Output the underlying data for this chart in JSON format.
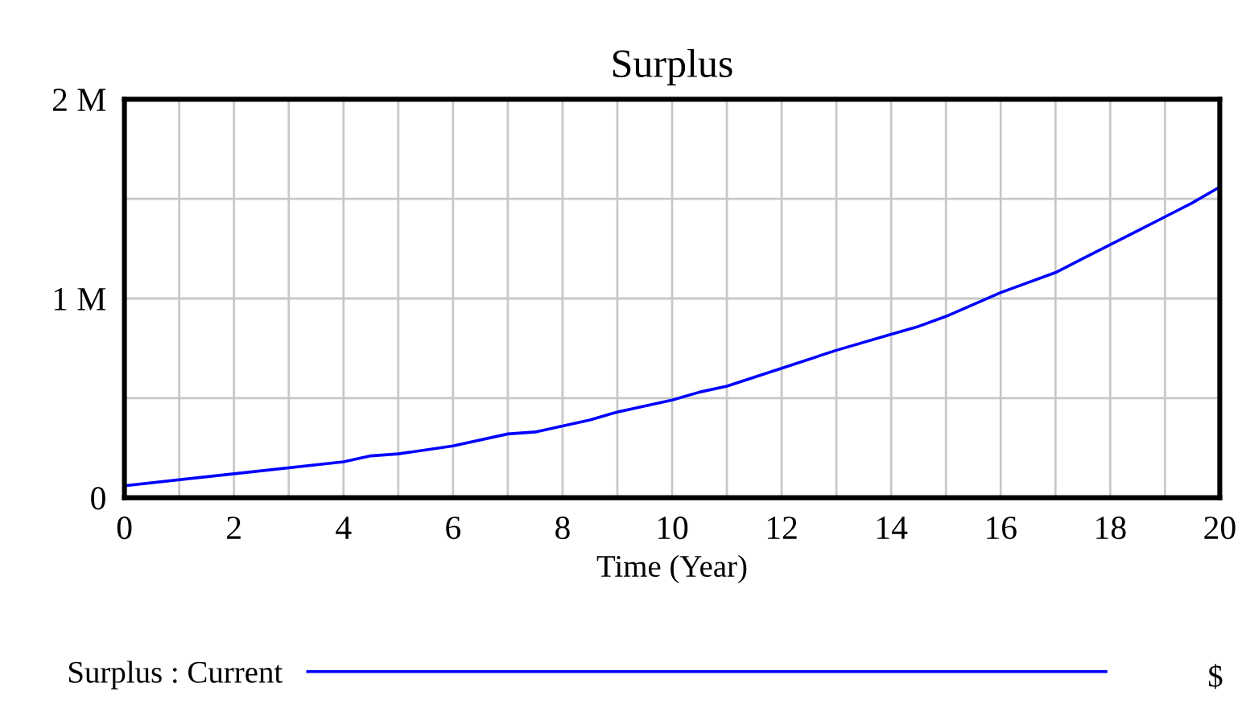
{
  "chart_data": {
    "type": "line",
    "title": "Surplus",
    "xlabel": "Time (Year)",
    "x": [
      0,
      2,
      4,
      4.5,
      5,
      5.5,
      6,
      7,
      7.5,
      8,
      8.5,
      9,
      10,
      10.5,
      11,
      12,
      13,
      14,
      14.5,
      15,
      16,
      17,
      17.5,
      18,
      18.5,
      19,
      19.5,
      20
    ],
    "series": [
      {
        "name": "Surplus : Current",
        "color": "#0000ff",
        "values": [
          60000,
          120000,
          180000,
          210000,
          220000,
          240000,
          260000,
          320000,
          330000,
          360000,
          390000,
          430000,
          490000,
          530000,
          560000,
          650000,
          740000,
          820000,
          860000,
          910000,
          1030000,
          1130000,
          1200000,
          1270000,
          1340000,
          1410000,
          1480000,
          1560000
        ]
      }
    ],
    "xlim": [
      0,
      20
    ],
    "xticks": [
      0,
      {
        "value": 1,
        "label": null
      },
      2,
      {
        "value": 3,
        "label": null
      },
      4,
      {
        "value": 5,
        "label": null
      },
      6,
      {
        "value": 7,
        "label": null
      },
      8,
      {
        "value": 9,
        "label": null
      },
      10,
      {
        "value": 11,
        "label": null
      },
      12,
      {
        "value": 13,
        "label": null
      },
      14,
      {
        "value": 15,
        "label": null
      },
      16,
      {
        "value": 17,
        "label": null
      },
      18,
      {
        "value": 19,
        "label": null
      },
      20
    ],
    "ylim": [
      0,
      2000000
    ],
    "yticks": [
      0,
      {
        "value": 500000,
        "label": null
      },
      {
        "value": 1000000,
        "label": "1 M"
      },
      {
        "value": 1500000,
        "label": null
      },
      {
        "value": 2000000,
        "label": "2 M"
      }
    ],
    "grid": true,
    "legend": "bottom",
    "marker": "none",
    "line_style": "solid",
    "annotations": [
      "$"
    ]
  }
}
